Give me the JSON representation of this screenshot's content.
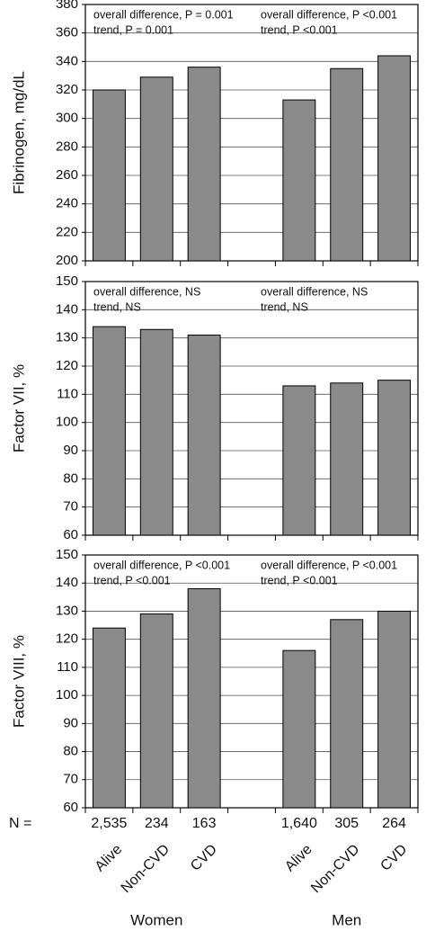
{
  "chart_data": [
    {
      "type": "bar",
      "ylabel": "Fibrinogen, mg/dL",
      "values": [
        320,
        329,
        336,
        null,
        313,
        335,
        344
      ],
      "color": "#8a8a8a",
      "ylim": [
        200,
        380
      ],
      "yticks": [
        200,
        220,
        240,
        260,
        280,
        300,
        320,
        340,
        360,
        380
      ],
      "grid": true,
      "annotations": [
        "overall difference, P = 0.001",
        "trend, P = 0.001",
        "overall difference, P <0.001",
        "trend, P <0.001"
      ]
    },
    {
      "type": "bar",
      "ylabel": "Factor VII, %",
      "values": [
        134,
        133,
        131,
        null,
        113,
        114,
        115
      ],
      "color": "#8a8a8a",
      "ylim": [
        60,
        150
      ],
      "yticks": [
        60,
        70,
        80,
        90,
        100,
        110,
        120,
        130,
        140,
        150
      ],
      "grid": true,
      "annotations": [
        "overall difference, NS",
        "trend, NS",
        "overall difference, NS",
        "trend, NS"
      ]
    },
    {
      "type": "bar",
      "ylabel": "Factor VIII, %",
      "values": [
        124,
        129,
        138,
        null,
        116,
        127,
        130
      ],
      "color": "#8a8a8a",
      "ylim": [
        60,
        150
      ],
      "yticks": [
        60,
        70,
        80,
        90,
        100,
        110,
        120,
        130,
        140,
        150
      ],
      "grid": true,
      "annotations": [
        "overall difference, P <0.001",
        "trend, P <0.001",
        "overall difference, P <0.001",
        "trend, P <0.001"
      ]
    }
  ],
  "x_axis": {
    "categories": [
      "Alive",
      "Non-CVD",
      "CVD",
      null,
      "Alive",
      "Non-CVD",
      "CVD"
    ],
    "n_label": "N =",
    "n_values": [
      "2,535",
      "234",
      "163",
      null,
      "1,640",
      "305",
      "264"
    ],
    "groups": [
      "Women",
      "Men"
    ]
  }
}
